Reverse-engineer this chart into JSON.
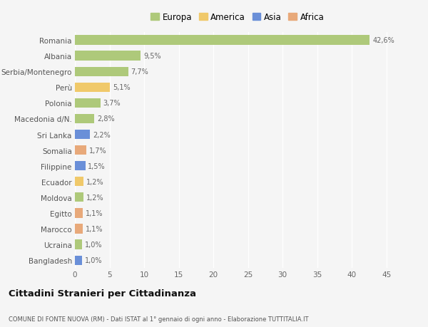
{
  "categories": [
    "Bangladesh",
    "Ucraina",
    "Marocco",
    "Egitto",
    "Moldova",
    "Ecuador",
    "Filippine",
    "Somalia",
    "Sri Lanka",
    "Macedonia d/N.",
    "Polonia",
    "Perù",
    "Serbia/Montenegro",
    "Albania",
    "Romania"
  ],
  "values": [
    1.0,
    1.0,
    1.1,
    1.1,
    1.2,
    1.2,
    1.5,
    1.7,
    2.2,
    2.8,
    3.7,
    5.1,
    7.7,
    9.5,
    42.6
  ],
  "labels": [
    "1,0%",
    "1,0%",
    "1,1%",
    "1,1%",
    "1,2%",
    "1,2%",
    "1,5%",
    "1,7%",
    "2,2%",
    "2,8%",
    "3,7%",
    "5,1%",
    "7,7%",
    "9,5%",
    "42,6%"
  ],
  "colors": [
    "#6a8fd8",
    "#aec97a",
    "#e8a97a",
    "#e8a97a",
    "#aec97a",
    "#f0c96a",
    "#6a8fd8",
    "#e8a97a",
    "#6a8fd8",
    "#aec97a",
    "#aec97a",
    "#f0c96a",
    "#aec97a",
    "#aec97a",
    "#aec97a"
  ],
  "legend_labels": [
    "Europa",
    "America",
    "Asia",
    "Africa"
  ],
  "legend_colors": [
    "#aec97a",
    "#f0c96a",
    "#6a8fd8",
    "#e8a97a"
  ],
  "title": "Cittadini Stranieri per Cittadinanza",
  "subtitle": "COMUNE DI FONTE NUOVA (RM) - Dati ISTAT al 1° gennaio di ogni anno - Elaborazione TUTTITALIA.IT",
  "xlim": [
    0,
    47
  ],
  "xticks": [
    0,
    5,
    10,
    15,
    20,
    25,
    30,
    35,
    40,
    45
  ],
  "background_color": "#f5f5f5",
  "grid_color": "#ffffff",
  "bar_height": 0.6
}
